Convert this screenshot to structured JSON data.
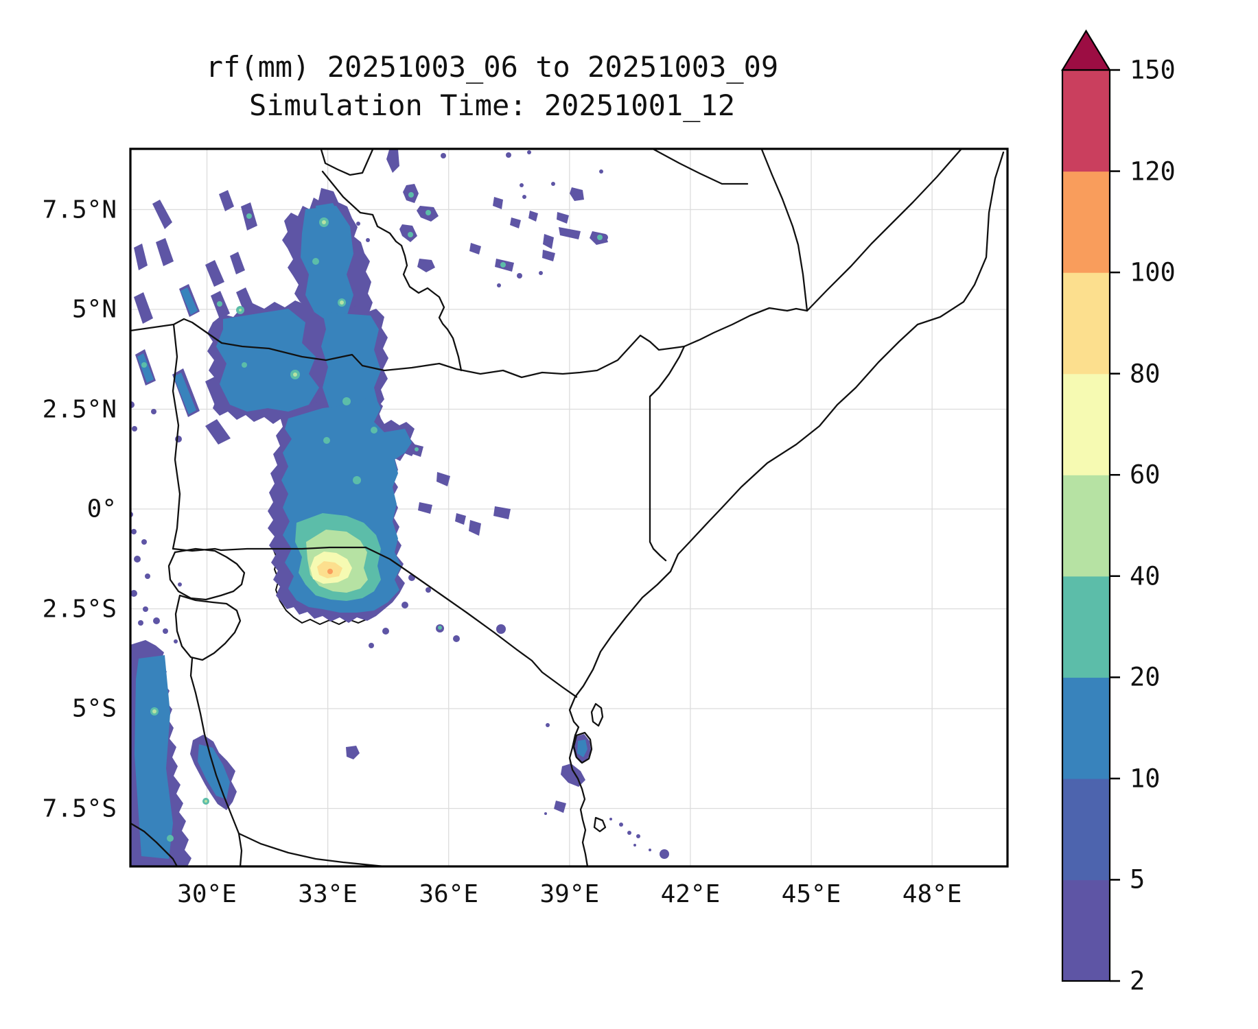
{
  "title": {
    "line1": "rf(mm) 20251003_06 to 20251003_09",
    "line2": "Simulation Time: 20251001_12"
  },
  "chart_data": {
    "type": "heatmap",
    "subtype": "filled-contour precipitation map",
    "title": "rf(mm) 20251003_06 to 20251003_09",
    "subtitle": "Simulation Time: 20251001_12",
    "variable": "rf",
    "units": "mm",
    "accumulation_window": "20251003_06 to 20251003_09",
    "simulation_time": "20251001_12",
    "x_tick_labels": [
      "30°E",
      "33°E",
      "36°E",
      "39°E",
      "42°E",
      "45°E",
      "48°E"
    ],
    "x_tick_values": [
      30,
      33,
      36,
      39,
      42,
      45,
      48
    ],
    "y_tick_labels": [
      "7.5°N",
      "5°N",
      "2.5°N",
      "0°",
      "2.5°S",
      "5°S",
      "7.5°S"
    ],
    "y_tick_values": [
      7.5,
      5,
      2.5,
      0,
      -2.5,
      -5,
      -7.5
    ],
    "lon_range": [
      28.1,
      49.9
    ],
    "lat_range": [
      -9,
      9
    ],
    "grid": true,
    "grid_color": "#dcdcdc",
    "frame_color": "#000000",
    "border_color": "#111111",
    "colorbar": {
      "position": "right",
      "orientation": "vertical",
      "extend": "max",
      "levels": [
        2,
        5,
        10,
        20,
        40,
        60,
        80,
        100,
        120,
        150
      ],
      "tick_labels": [
        "2",
        "5",
        "10",
        "20",
        "40",
        "60",
        "80",
        "100",
        "120",
        "150"
      ],
      "colors": [
        "#5e55a5",
        "#4d64ae",
        "#3883bc",
        "#5cbda9",
        "#b6e2a3",
        "#f6fab2",
        "#fcdf8e",
        "#f99d5c",
        "#ca3f5e"
      ],
      "over_color": "#9c0d43"
    },
    "map_region": "East Africa, approx. 28°E–50°E and 9°N–9°S (Kenya, Uganda, Tanzania, Somalia, Ethiopia, South Sudan, Rwanda, Burundi)",
    "map_features": [
      "country borders",
      "Indian Ocean coastline",
      "Lake Victoria",
      "Lake Tanganyika shore",
      "Pemba / Zanzibar / Mafia islands"
    ],
    "rain_maxima": [
      {
        "area": "Lake Victoria basin, SW Kenya / NW Tanzania (~33°E, 1.5°S)",
        "peak_band_mm": "80-120"
      },
      {
        "area": "Uganda / South Sudan highlands (~33-34.5°E, 2-5.5°N)",
        "peak_band_mm": "20-40"
      },
      {
        "area": "Lake Tanganyika corridor (~29.5-30.5°E, 4.5-8.5°S)",
        "peak_band_mm": "20-40"
      },
      {
        "area": "Scattered cells N Uganda / S Sudan / SW Ethiopia (33-38°E, 5-8.5°N)",
        "peak_band_mm": "10-20"
      },
      {
        "area": "Tanzanian coast & Zanzibar (~39°E, 6-7°S)",
        "peak_band_mm": "2-5"
      }
    ]
  }
}
